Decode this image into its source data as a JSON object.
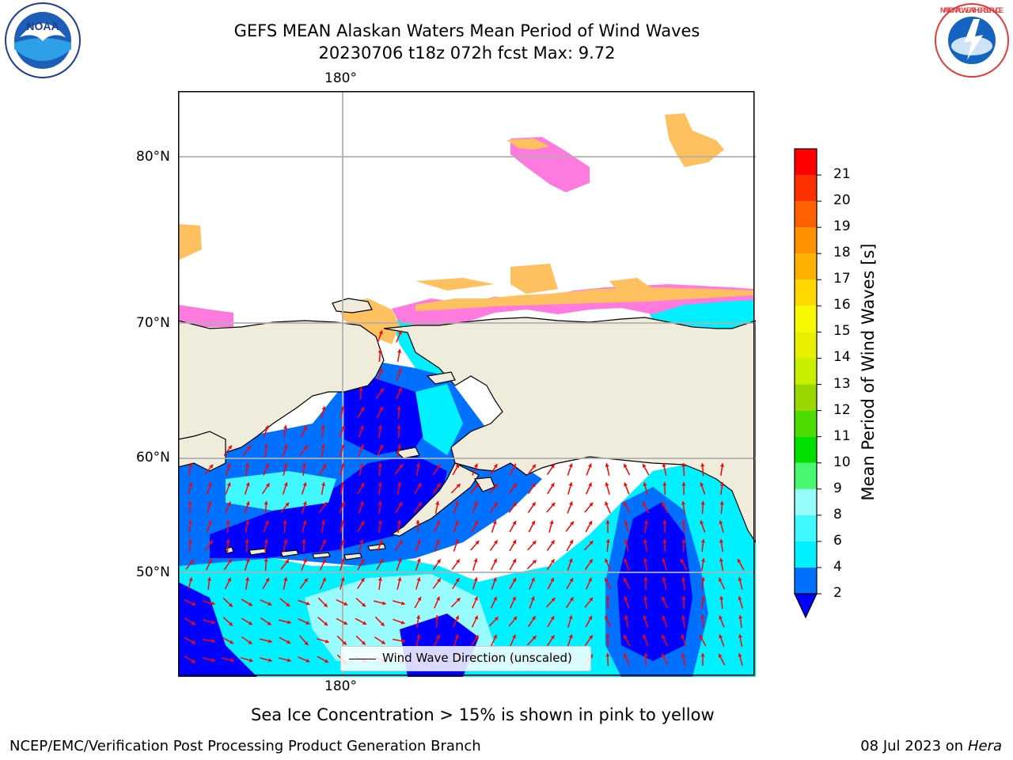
{
  "title": {
    "line1": "GEFS MEAN Alaskan Waters Mean Period of Wind Waves",
    "line2": "20230706 t18z 072h fcst   Max: 9.72"
  },
  "logos": {
    "left": "NOAA",
    "left_icon": "noaa-logo",
    "right": "NATIONAL WEATHER SERVICE",
    "right_icon": "nws-logo"
  },
  "map": {
    "lon_label_top": "180°",
    "lon_label_bottom": "180°",
    "lat_labels": [
      "80°N",
      "70°N",
      "60°N",
      "50°N"
    ],
    "land_color": "#efecdc",
    "gridline_color": "#b0b0b0",
    "arrow_color": "#ff0000",
    "legend_label": "Wind Wave Direction (unscaled)"
  },
  "colorbar": {
    "label": "Mean Period of Wind Waves [s]",
    "ticks": [
      "2",
      "4",
      "6",
      "8",
      "9",
      "10",
      "11",
      "12",
      "13",
      "14",
      "15",
      "16",
      "17",
      "18",
      "19",
      "20",
      "21"
    ],
    "colors": [
      "#0070ff",
      "#00f0ff",
      "#40f8ff",
      "#98fcfc",
      "#49f66f",
      "#00e000",
      "#4cdc00",
      "#9ad600",
      "#c8ee00",
      "#e8f000",
      "#f8f800",
      "#ffd800",
      "#ffb000",
      "#ff9000",
      "#ff6000",
      "#ff3000",
      "#ff0000"
    ],
    "extend_color": "#0000ff"
  },
  "note": "Sea Ice Concentration > 15% is shown in pink to yellow",
  "footer": {
    "left": "NCEP/EMC/Verification Post Processing Product Generation Branch",
    "right_date": "08 Jul 2023 on ",
    "right_machine": "Hera"
  }
}
